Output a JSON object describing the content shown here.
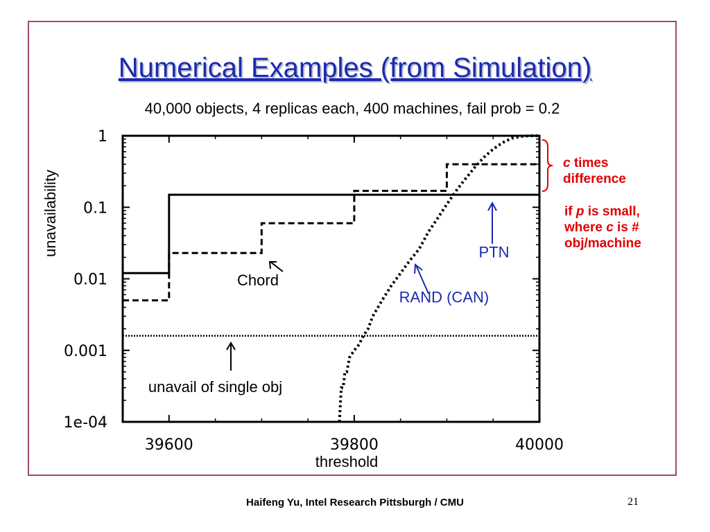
{
  "slide": {
    "title": "Numerical Examples (from Simulation)",
    "subtitle": "40,000 objects, 4 replicas each, 400 machines, fail prob = 0.2",
    "footer": "Haifeng Yu, Intel Research Pittsburgh / CMU",
    "page_number": "21",
    "note1_c": "c",
    "note1_rest": " times difference",
    "note2_if": "if ",
    "note2_p": "p",
    "note2_mid": " is small, where ",
    "note2_c": "c",
    "note2_end": " is # obj/machine",
    "note_color": "#e00000",
    "title_color": "#1a2ab0"
  },
  "chart_data": {
    "type": "line",
    "xlabel": "threshold",
    "ylabel": "unavailability",
    "xlim": [
      39550,
      40000
    ],
    "ylim": [
      0.0001,
      1
    ],
    "yscale": "log",
    "xticks": [
      "39600",
      "39800",
      "40000"
    ],
    "yticks": [
      "1",
      "0.1",
      "0.01",
      "0.001",
      "1e-04"
    ],
    "series": [
      {
        "name": "PTN",
        "style": "solid",
        "x": [
          39550,
          39600,
          39600,
          40000
        ],
        "y": [
          0.012,
          0.012,
          0.15,
          0.15
        ]
      },
      {
        "name": "Chord",
        "style": "dashed",
        "x": [
          39550,
          39600,
          39600,
          39700,
          39700,
          39800,
          39800,
          39900,
          39900,
          40000
        ],
        "y": [
          0.005,
          0.005,
          0.023,
          0.023,
          0.06,
          0.06,
          0.17,
          0.17,
          0.4,
          0.4
        ]
      },
      {
        "name": "RAND (CAN)",
        "style": "dotted",
        "x": [
          39784,
          39786,
          39788,
          39790,
          39792,
          39795,
          39800,
          39805,
          39810,
          39815,
          39820,
          39830,
          39840,
          39850,
          39860,
          39870,
          39880,
          39890,
          39900,
          39910,
          39920,
          39930,
          39940,
          39950,
          39960,
          39970,
          39980,
          39990,
          40000
        ],
        "y": [
          0.0001,
          0.0003,
          0.0003,
          0.0005,
          0.0005,
          0.0008,
          0.001,
          0.0012,
          0.0016,
          0.002,
          0.003,
          0.005,
          0.008,
          0.012,
          0.018,
          0.026,
          0.045,
          0.07,
          0.11,
          0.17,
          0.25,
          0.36,
          0.5,
          0.65,
          0.8,
          0.92,
          0.98,
          1.0,
          1.0
        ]
      },
      {
        "name": "unavail of single obj",
        "style": "dotted-fine",
        "x": [
          39550,
          40000
        ],
        "y": [
          0.0016,
          0.0016
        ]
      }
    ],
    "annotations": [
      {
        "text": "Chord",
        "x": 39696,
        "y": 0.0081
      },
      {
        "text": "unavail of single obj",
        "x": 39650,
        "y": 0.00026
      },
      {
        "text": "PTN",
        "x": 39951,
        "y": 0.02
      },
      {
        "text": "RAND (CAN)",
        "x": 39897,
        "y": 0.0047
      }
    ],
    "grid": false,
    "legend": "none"
  }
}
